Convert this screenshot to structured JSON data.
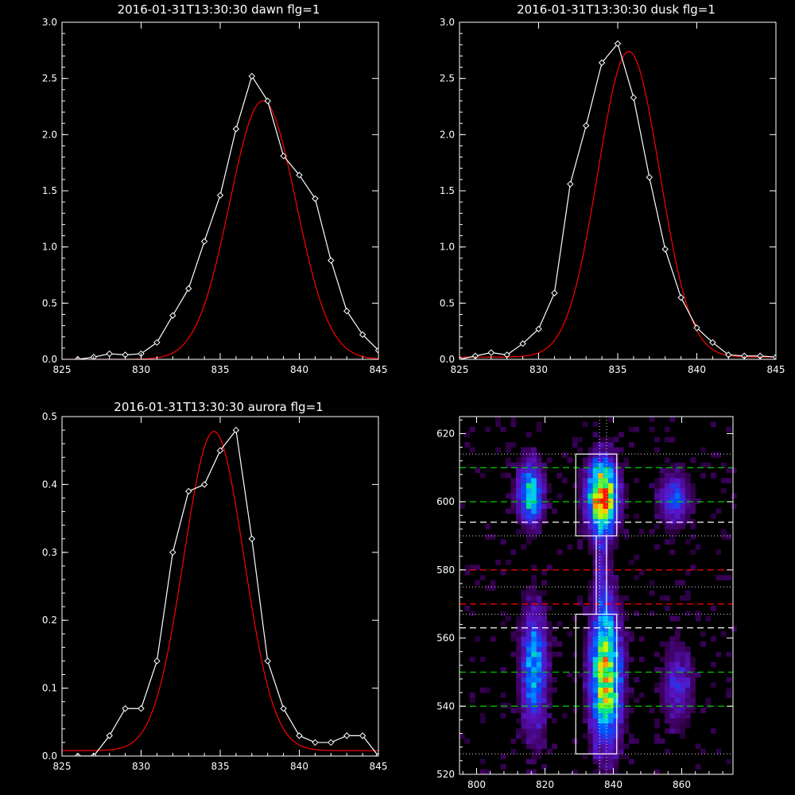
{
  "colors": {
    "background": "#000000",
    "axes": "#ffffff",
    "data_line": "#ffffff",
    "fit_line": "#ff0000",
    "green_dash": "#00d000",
    "red_dash": "#ff0000",
    "white_dash": "#ffffff"
  },
  "chart_data": [
    {
      "type": "line",
      "title": "2016-01-31T13:30:30 dawn flg=1",
      "xlim": [
        825,
        845
      ],
      "ylim": [
        0,
        3.0
      ],
      "xticks": [
        825,
        830,
        835,
        840,
        845
      ],
      "yticks": [
        0.0,
        0.5,
        1.0,
        1.5,
        2.0,
        2.5,
        3.0
      ],
      "series": [
        {
          "role": "data",
          "marker": "diamond",
          "x": [
            826,
            827,
            828,
            829,
            830,
            831,
            832,
            833,
            834,
            835,
            836,
            837,
            838,
            839,
            840,
            841,
            842,
            843,
            844,
            845
          ],
          "y": [
            0.0,
            0.02,
            0.05,
            0.04,
            0.05,
            0.15,
            0.39,
            0.63,
            1.05,
            1.46,
            2.05,
            2.52,
            2.3,
            1.81,
            1.64,
            1.43,
            0.88,
            0.43,
            0.22,
            0.08
          ]
        },
        {
          "role": "fit",
          "type": "gaussian",
          "amplitude": 2.3,
          "center": 837.7,
          "sigma": 2.1,
          "offset": 0.0
        }
      ]
    },
    {
      "type": "line",
      "title": "2016-01-31T13:30:30 dusk flg=1",
      "xlim": [
        825,
        845
      ],
      "ylim": [
        0,
        3.0
      ],
      "xticks": [
        825,
        830,
        835,
        840,
        845
      ],
      "yticks": [
        0.0,
        0.5,
        1.0,
        1.5,
        2.0,
        2.5,
        3.0
      ],
      "series": [
        {
          "role": "data",
          "marker": "diamond",
          "x": [
            825,
            826,
            827,
            828,
            829,
            830,
            831,
            832,
            833,
            834,
            835,
            836,
            837,
            838,
            839,
            840,
            841,
            842,
            843,
            844,
            845
          ],
          "y": [
            0.0,
            0.03,
            0.06,
            0.04,
            0.14,
            0.27,
            0.59,
            1.56,
            2.08,
            2.64,
            2.81,
            2.33,
            1.62,
            0.98,
            0.55,
            0.28,
            0.15,
            0.04,
            0.03,
            0.03,
            0.02
          ]
        },
        {
          "role": "fit",
          "type": "gaussian",
          "amplitude": 2.72,
          "center": 835.7,
          "sigma": 1.95,
          "offset": 0.02
        }
      ]
    },
    {
      "type": "line",
      "title": "2016-01-31T13:30:30 aurora flg=1",
      "xlim": [
        825,
        845
      ],
      "ylim": [
        0,
        0.5
      ],
      "xticks": [
        825,
        830,
        835,
        840,
        845
      ],
      "yticks": [
        0.0,
        0.1,
        0.2,
        0.3,
        0.4,
        0.5
      ],
      "series": [
        {
          "role": "data",
          "marker": "diamond",
          "x": [
            826,
            827,
            828,
            829,
            830,
            831,
            832,
            833,
            834,
            835,
            836,
            837,
            838,
            839,
            840,
            841,
            842,
            843,
            844,
            845
          ],
          "y": [
            0.0,
            0.0,
            0.03,
            0.07,
            0.07,
            0.14,
            0.3,
            0.39,
            0.4,
            0.45,
            0.48,
            0.32,
            0.14,
            0.07,
            0.03,
            0.02,
            0.02,
            0.03,
            0.03,
            0.0
          ]
        },
        {
          "role": "fit",
          "type": "gaussian",
          "amplitude": 0.47,
          "center": 834.6,
          "sigma": 1.9,
          "offset": 0.008
        }
      ]
    },
    {
      "type": "heatmap",
      "xlim": [
        795,
        875
      ],
      "ylim": [
        520,
        625
      ],
      "xticks": [
        800,
        820,
        840,
        860
      ],
      "yticks": [
        520,
        540,
        560,
        580,
        600,
        620
      ],
      "colormap": "rainbow",
      "sources": [
        {
          "x": 815,
          "y": 602,
          "sx": 2.5,
          "sy": 6,
          "amp": 0.6
        },
        {
          "x": 816,
          "y": 550,
          "sx": 2.5,
          "sy": 12,
          "amp": 0.5
        },
        {
          "x": 836,
          "y": 601,
          "sx": 3,
          "sy": 7,
          "amp": 1.0
        },
        {
          "x": 837,
          "y": 548,
          "sx": 3,
          "sy": 13,
          "amp": 0.85
        },
        {
          "x": 857,
          "y": 600,
          "sx": 3,
          "sy": 5,
          "amp": 0.35
        },
        {
          "x": 858,
          "y": 545,
          "sx": 3,
          "sy": 8,
          "amp": 0.25
        },
        {
          "x": 836,
          "y": 578,
          "sx": 1.5,
          "sy": 10,
          "amp": 0.18
        }
      ],
      "green_dashed_y": [
        610,
        600,
        550,
        540
      ],
      "red_dashed_y": [
        580,
        570
      ],
      "white_dashed_y": [
        594,
        563
      ],
      "dotted_y": [
        614,
        590,
        575,
        567,
        526
      ],
      "dotted_x": [
        836,
        838
      ],
      "boxes": [
        {
          "x0": 829,
          "x1": 841,
          "y0": 590,
          "y1": 614
        },
        {
          "x0": 829,
          "x1": 841,
          "y0": 526,
          "y1": 567
        }
      ],
      "connector": {
        "x0": 835,
        "x1": 838,
        "y0": 567,
        "y1": 590
      }
    }
  ]
}
